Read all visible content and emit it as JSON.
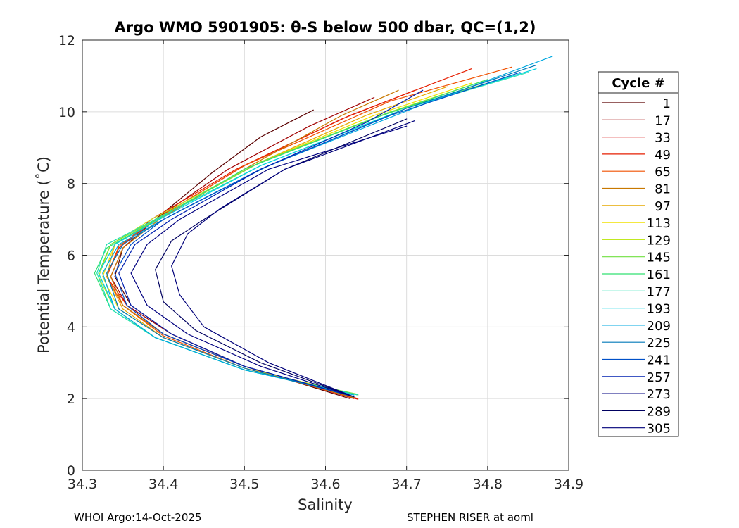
{
  "chart_data": {
    "type": "line",
    "title": "Argo WMO 5901905: θ-S below 500 dbar,  QC=(1,2)",
    "xlabel": "Salinity",
    "ylabel": "Potential Temperature (˚C)",
    "xlim": [
      34.3,
      34.9
    ],
    "ylim": [
      0,
      12
    ],
    "grid": true,
    "x_ticks": [
      "34.3",
      "34.4",
      "34.5",
      "34.6",
      "34.7",
      "34.8",
      "34.9"
    ],
    "y_ticks": [
      "0",
      "2",
      "4",
      "6",
      "8",
      "10",
      "12"
    ],
    "legend": {
      "title": "Cycle #",
      "placement": "outside-right",
      "entries": [
        {
          "label": "1",
          "color": "#5a0000"
        },
        {
          "label": "17",
          "color": "#a00000"
        },
        {
          "label": "33",
          "color": "#d40000"
        },
        {
          "label": "49",
          "color": "#e61e00"
        },
        {
          "label": "65",
          "color": "#f05000"
        },
        {
          "label": "81",
          "color": "#c87800"
        },
        {
          "label": "97",
          "color": "#e6a800"
        },
        {
          "label": "113",
          "color": "#f0e000"
        },
        {
          "label": "129",
          "color": "#c0e820"
        },
        {
          "label": "145",
          "color": "#70e040"
        },
        {
          "label": "161",
          "color": "#30e070"
        },
        {
          "label": "177",
          "color": "#20e0b0"
        },
        {
          "label": "193",
          "color": "#00d0e0"
        },
        {
          "label": "209",
          "color": "#00a8e0"
        },
        {
          "label": "225",
          "color": "#0078b8"
        },
        {
          "label": "241",
          "color": "#0050c8"
        },
        {
          "label": "257",
          "color": "#0020b0"
        },
        {
          "label": "273",
          "color": "#000080"
        },
        {
          "label": "289",
          "color": "#000060"
        },
        {
          "label": "305",
          "color": "#00007a"
        }
      ]
    },
    "series": [
      {
        "name": "1",
        "points": [
          [
            34.63,
            2.0
          ],
          [
            34.5,
            2.9
          ],
          [
            34.41,
            3.8
          ],
          [
            34.36,
            4.6
          ],
          [
            34.34,
            5.4
          ],
          [
            34.35,
            6.2
          ],
          [
            34.39,
            7.0
          ],
          [
            34.46,
            8.3
          ],
          [
            34.52,
            9.3
          ],
          [
            34.585,
            10.05
          ]
        ]
      },
      {
        "name": "17",
        "points": [
          [
            34.64,
            2.0
          ],
          [
            34.5,
            2.9
          ],
          [
            34.41,
            3.8
          ],
          [
            34.355,
            4.6
          ],
          [
            34.335,
            5.4
          ],
          [
            34.35,
            6.2
          ],
          [
            34.39,
            7.0
          ],
          [
            34.48,
            8.4
          ],
          [
            34.58,
            9.6
          ],
          [
            34.66,
            10.4
          ]
        ]
      },
      {
        "name": "33",
        "points": [
          [
            34.64,
            1.98
          ],
          [
            34.5,
            2.9
          ],
          [
            34.4,
            3.8
          ],
          [
            34.35,
            4.6
          ],
          [
            34.33,
            5.4
          ],
          [
            34.345,
            6.2
          ],
          [
            34.39,
            7.0
          ],
          [
            34.5,
            8.5
          ],
          [
            34.62,
            9.8
          ],
          [
            34.71,
            10.6
          ]
        ]
      },
      {
        "name": "49",
        "points": [
          [
            34.635,
            2.0
          ],
          [
            34.5,
            2.9
          ],
          [
            34.4,
            3.8
          ],
          [
            34.355,
            4.6
          ],
          [
            34.33,
            5.4
          ],
          [
            34.345,
            6.2
          ],
          [
            34.385,
            7.0
          ],
          [
            34.49,
            8.4
          ],
          [
            34.63,
            9.9
          ],
          [
            34.78,
            11.2
          ]
        ]
      },
      {
        "name": "65",
        "points": [
          [
            34.64,
            2.0
          ],
          [
            34.5,
            2.85
          ],
          [
            34.4,
            3.75
          ],
          [
            34.35,
            4.6
          ],
          [
            34.33,
            5.4
          ],
          [
            34.345,
            6.25
          ],
          [
            34.39,
            7.0
          ],
          [
            34.5,
            8.5
          ],
          [
            34.68,
            10.3
          ],
          [
            34.83,
            11.25
          ]
        ]
      },
      {
        "name": "81",
        "points": [
          [
            34.635,
            2.02
          ],
          [
            34.5,
            2.9
          ],
          [
            34.4,
            3.8
          ],
          [
            34.35,
            4.6
          ],
          [
            34.335,
            5.4
          ],
          [
            34.35,
            6.2
          ],
          [
            34.395,
            7.0
          ],
          [
            34.5,
            8.4
          ],
          [
            34.62,
            9.9
          ],
          [
            34.69,
            10.6
          ]
        ]
      },
      {
        "name": "97",
        "points": [
          [
            34.635,
            2.05
          ],
          [
            34.5,
            2.85
          ],
          [
            34.4,
            3.7
          ],
          [
            34.35,
            4.5
          ],
          [
            34.33,
            5.4
          ],
          [
            34.34,
            6.3
          ],
          [
            34.39,
            7.0
          ],
          [
            34.52,
            8.6
          ],
          [
            34.65,
            9.9
          ],
          [
            34.75,
            10.7
          ]
        ]
      },
      {
        "name": "113",
        "points": [
          [
            34.64,
            2.1
          ],
          [
            34.5,
            2.85
          ],
          [
            34.4,
            3.7
          ],
          [
            34.345,
            4.5
          ],
          [
            34.325,
            5.4
          ],
          [
            34.34,
            6.3
          ],
          [
            34.39,
            7.0
          ],
          [
            34.52,
            8.6
          ],
          [
            34.66,
            9.9
          ],
          [
            34.78,
            10.8
          ]
        ]
      },
      {
        "name": "129",
        "points": [
          [
            34.64,
            2.1
          ],
          [
            34.5,
            2.8
          ],
          [
            34.39,
            3.7
          ],
          [
            34.34,
            4.5
          ],
          [
            34.32,
            5.4
          ],
          [
            34.335,
            6.3
          ],
          [
            34.385,
            7.0
          ],
          [
            34.52,
            8.6
          ],
          [
            34.68,
            10.0
          ],
          [
            34.8,
            10.9
          ]
        ]
      },
      {
        "name": "145",
        "points": [
          [
            34.64,
            2.12
          ],
          [
            34.5,
            2.8
          ],
          [
            34.39,
            3.7
          ],
          [
            34.34,
            4.5
          ],
          [
            34.32,
            5.5
          ],
          [
            34.335,
            6.3
          ],
          [
            34.39,
            7.0
          ],
          [
            34.52,
            8.6
          ],
          [
            34.68,
            10.0
          ],
          [
            34.83,
            11.0
          ]
        ]
      },
      {
        "name": "161",
        "points": [
          [
            34.64,
            2.1
          ],
          [
            34.5,
            2.8
          ],
          [
            34.39,
            3.7
          ],
          [
            34.335,
            4.5
          ],
          [
            34.315,
            5.5
          ],
          [
            34.33,
            6.2
          ],
          [
            34.385,
            6.9
          ],
          [
            34.5,
            8.4
          ],
          [
            34.67,
            9.9
          ],
          [
            34.8,
            10.9
          ]
        ]
      },
      {
        "name": "177",
        "points": [
          [
            34.64,
            2.1
          ],
          [
            34.5,
            2.8
          ],
          [
            34.39,
            3.7
          ],
          [
            34.335,
            4.5
          ],
          [
            34.318,
            5.5
          ],
          [
            34.33,
            6.3
          ],
          [
            34.39,
            7.0
          ],
          [
            34.52,
            8.5
          ],
          [
            34.7,
            10.1
          ],
          [
            34.85,
            11.1
          ]
        ]
      },
      {
        "name": "193",
        "points": [
          [
            34.635,
            2.1
          ],
          [
            34.5,
            2.8
          ],
          [
            34.39,
            3.7
          ],
          [
            34.34,
            4.5
          ],
          [
            34.32,
            5.5
          ],
          [
            34.34,
            6.3
          ],
          [
            34.395,
            7.0
          ],
          [
            34.52,
            8.5
          ],
          [
            34.7,
            10.1
          ],
          [
            34.86,
            11.2
          ]
        ]
      },
      {
        "name": "209",
        "points": [
          [
            34.635,
            2.1
          ],
          [
            34.5,
            2.8
          ],
          [
            34.39,
            3.7
          ],
          [
            34.34,
            4.5
          ],
          [
            34.325,
            5.5
          ],
          [
            34.345,
            6.3
          ],
          [
            34.4,
            7.0
          ],
          [
            34.53,
            8.5
          ],
          [
            34.72,
            10.2
          ],
          [
            34.88,
            11.55
          ]
        ]
      },
      {
        "name": "225",
        "points": [
          [
            34.635,
            2.05
          ],
          [
            34.5,
            2.85
          ],
          [
            34.4,
            3.7
          ],
          [
            34.345,
            4.5
          ],
          [
            34.33,
            5.5
          ],
          [
            34.35,
            6.3
          ],
          [
            34.4,
            7.0
          ],
          [
            34.52,
            8.4
          ],
          [
            34.7,
            10.1
          ],
          [
            34.86,
            11.3
          ]
        ]
      },
      {
        "name": "241",
        "points": [
          [
            34.635,
            2.05
          ],
          [
            34.5,
            2.9
          ],
          [
            34.4,
            3.8
          ],
          [
            34.355,
            4.6
          ],
          [
            34.34,
            5.5
          ],
          [
            34.36,
            6.3
          ],
          [
            34.4,
            7.0
          ],
          [
            34.52,
            8.4
          ],
          [
            34.68,
            9.9
          ],
          [
            34.84,
            11.1
          ]
        ]
      },
      {
        "name": "257",
        "points": [
          [
            34.635,
            2.05
          ],
          [
            34.5,
            2.9
          ],
          [
            34.41,
            3.8
          ],
          [
            34.36,
            4.6
          ],
          [
            34.345,
            5.5
          ],
          [
            34.365,
            6.3
          ],
          [
            34.41,
            7.0
          ],
          [
            34.52,
            8.4
          ],
          [
            34.65,
            9.7
          ],
          [
            34.72,
            10.6
          ]
        ]
      },
      {
        "name": "273",
        "points": [
          [
            34.635,
            2.05
          ],
          [
            34.52,
            2.9
          ],
          [
            34.43,
            3.8
          ],
          [
            34.38,
            4.6
          ],
          [
            34.36,
            5.5
          ],
          [
            34.38,
            6.3
          ],
          [
            34.42,
            7.0
          ],
          [
            34.53,
            8.4
          ],
          [
            34.7,
            9.6
          ]
        ]
      },
      {
        "name": "289",
        "points": [
          [
            34.635,
            2.05
          ],
          [
            34.52,
            3.0
          ],
          [
            34.44,
            3.9
          ],
          [
            34.4,
            4.7
          ],
          [
            34.39,
            5.6
          ],
          [
            34.41,
            6.4
          ],
          [
            34.45,
            7.0
          ],
          [
            34.55,
            8.4
          ],
          [
            34.7,
            9.8
          ]
        ]
      },
      {
        "name": "305",
        "points": [
          [
            34.635,
            2.05
          ],
          [
            34.53,
            3.0
          ],
          [
            34.45,
            4.0
          ],
          [
            34.42,
            4.9
          ],
          [
            34.41,
            5.7
          ],
          [
            34.43,
            6.6
          ],
          [
            34.47,
            7.3
          ],
          [
            34.55,
            8.4
          ],
          [
            34.71,
            9.75
          ]
        ]
      }
    ]
  },
  "footer": {
    "left": "WHOI Argo:14-Oct-2025",
    "right": "STEPHEN RISER at aoml"
  }
}
